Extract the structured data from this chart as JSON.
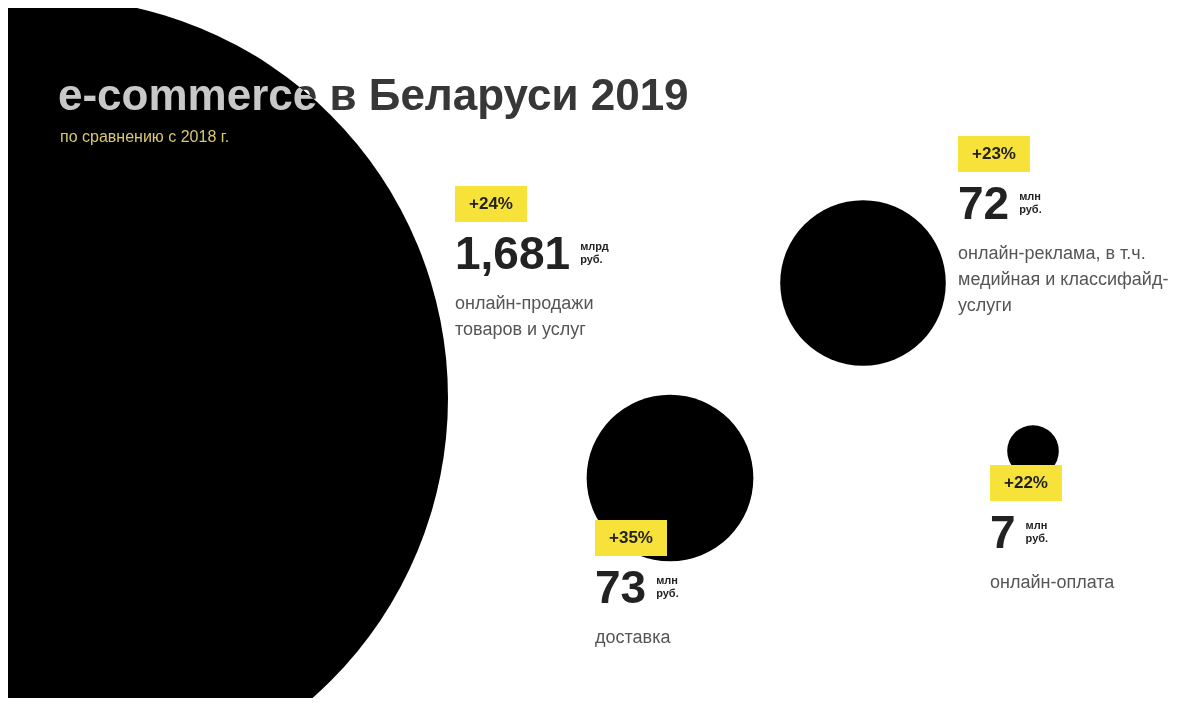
{
  "chart_data": {
    "type": "other",
    "title": "e-commerce в Беларуси 2019",
    "subtitle": "по сравнению с 2018 г.",
    "categories": [
      "онлайн-продажи товаров и услуг",
      "доставка",
      "онлайн-реклама, в т.ч. медийная и классифайд-услуги",
      "онлайн-оплата"
    ],
    "values": [
      1681,
      73,
      72,
      7
    ],
    "value_labels": [
      "1,681 млрд руб.",
      "73 млн руб.",
      "72 млн руб.",
      "7 млн руб."
    ],
    "color": "#000000",
    "annotations": [
      {
        "text": "+24%",
        "x": "онлайн-продажи товаров и услуг"
      },
      {
        "text": "+35%",
        "x": "доставка"
      },
      {
        "text": "+23%",
        "x": "онлайн-реклама, в т.ч. медийная и классифайд-услуги"
      },
      {
        "text": "+22%",
        "x": "онлайн-оплата"
      }
    ]
  }
}
